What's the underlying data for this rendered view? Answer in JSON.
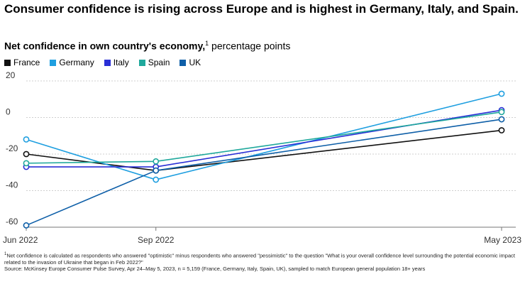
{
  "title": "Consumer confidence is rising across Europe and is highest in Germany, Italy, and Spain.",
  "subtitle": {
    "main": "Net confidence in own country's economy,",
    "note_marker": "1",
    "unit": " percentage points"
  },
  "footnote": {
    "marker": "1",
    "text": "Net confidence is calculated as respondents who answered \"optimistic\" minus respondents who answered \"pessimistic\" to the question \"What is your overall confidence level surrounding the potential economic impact related to the invasion of Ukraine that began in Feb 2022?\"",
    "source": "Source: McKinsey Europe Consumer Pulse Survey, Apr 24–May 5, 2023, n = 5,159 (France, Germany, Italy, Spain, UK), sampled to match European general population 18+ years"
  },
  "chart_data": {
    "type": "line",
    "x": [
      "Jun 2022",
      "Sep 2022",
      "May 2023"
    ],
    "x_positions": [
      0,
      3,
      11
    ],
    "ylim": [
      -60,
      20
    ],
    "yticks": [
      20,
      0,
      -20,
      -40,
      -60
    ],
    "ytick_labels": [
      "20",
      "0",
      "-20",
      "-40",
      "-60"
    ],
    "grid": true,
    "legend_position": "top-left",
    "series": [
      {
        "name": "France",
        "color": "#111111",
        "values": [
          -20,
          -29,
          -7
        ]
      },
      {
        "name": "Germany",
        "color": "#1f9fe0",
        "values": [
          -12,
          -34,
          13
        ]
      },
      {
        "name": "Italy",
        "color": "#2a2fd6",
        "values": [
          -27,
          -27,
          4
        ]
      },
      {
        "name": "Spain",
        "color": "#1fa89c",
        "values": [
          -25,
          -24,
          3
        ]
      },
      {
        "name": "UK",
        "color": "#0e5fa8",
        "values": [
          -59,
          -29,
          -1
        ]
      }
    ]
  }
}
